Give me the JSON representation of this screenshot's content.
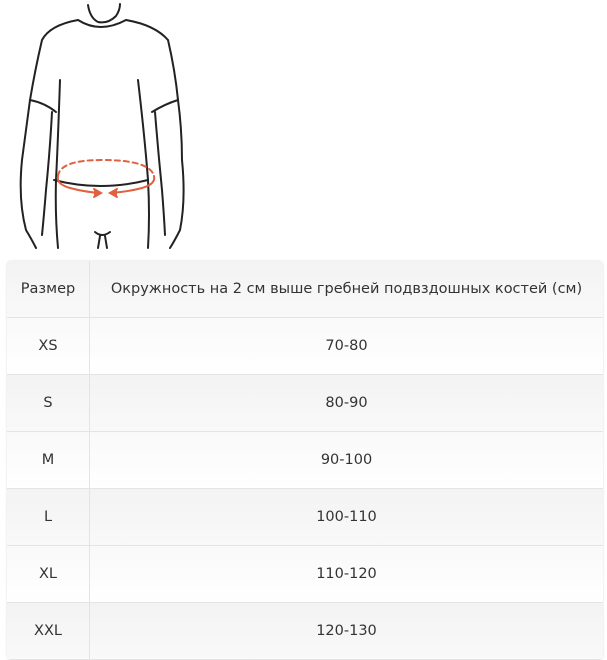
{
  "figure": {
    "description_icon": "waist-measurement-illustration",
    "arrow_color": "#e06040"
  },
  "table": {
    "headers": [
      "Размер",
      "Окружность на 2 см выше гребней подвздошных костей (см)"
    ],
    "rows": [
      {
        "size": "XS",
        "range": "70-80"
      },
      {
        "size": "S",
        "range": "80-90"
      },
      {
        "size": "M",
        "range": "90-100"
      },
      {
        "size": "L",
        "range": "100-110"
      },
      {
        "size": "XL",
        "range": "110-120"
      },
      {
        "size": "XXL",
        "range": "120-130"
      }
    ]
  }
}
